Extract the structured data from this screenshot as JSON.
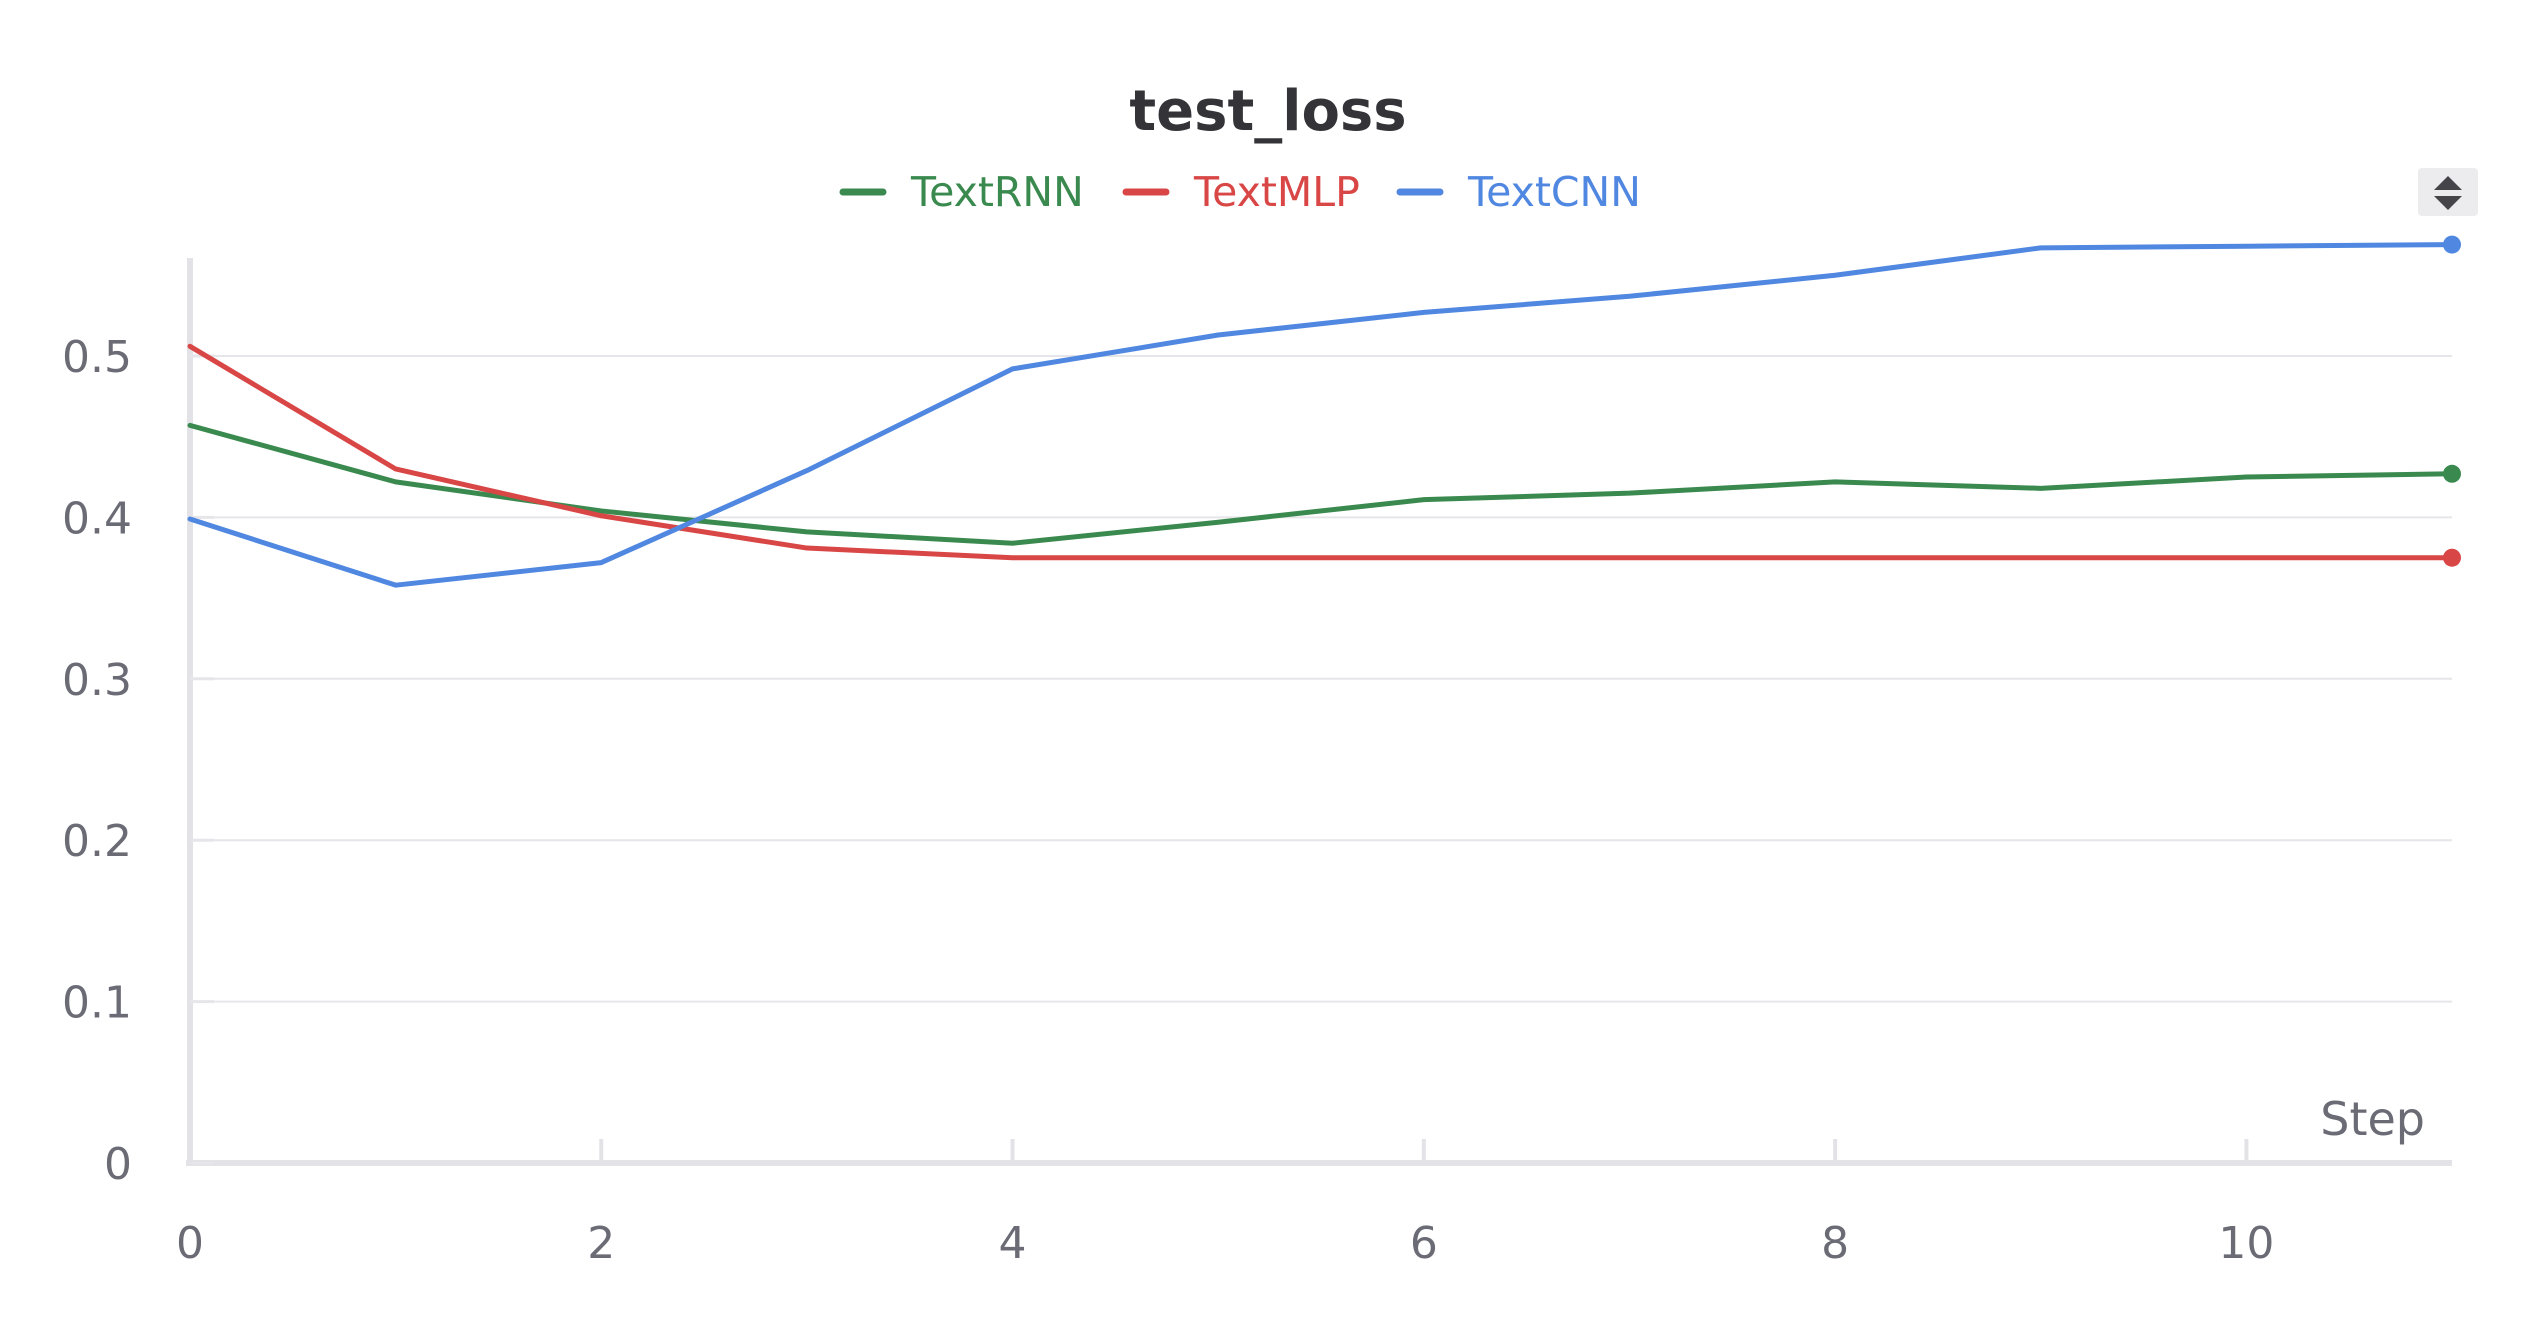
{
  "chart_data": {
    "type": "line",
    "title": "test_loss",
    "xlabel": "Step",
    "ylabel": "",
    "xlim": [
      0,
      11
    ],
    "ylim": [
      0,
      0.57
    ],
    "x_ticks": [
      "0",
      "2",
      "4",
      "6",
      "8",
      "10"
    ],
    "y_ticks": [
      "0",
      "0.1",
      "0.2",
      "0.3",
      "0.4",
      "0.5"
    ],
    "grid": true,
    "legend_position": "top-center",
    "x": [
      0,
      1,
      2,
      3,
      4,
      5,
      6,
      7,
      8,
      9,
      10,
      11
    ],
    "series": [
      {
        "name": "TextRNN",
        "color": "#3a8a4f",
        "values": [
          0.457,
          0.422,
          0.404,
          0.391,
          0.384,
          0.397,
          0.411,
          0.415,
          0.422,
          0.418,
          0.425,
          0.427
        ]
      },
      {
        "name": "TextMLP",
        "color": "#d94646",
        "values": [
          0.506,
          0.43,
          0.401,
          0.381,
          0.375,
          0.375,
          0.375,
          0.375,
          0.375,
          0.375,
          0.375,
          0.375
        ]
      },
      {
        "name": "TextCNN",
        "color": "#5087e0",
        "values": [
          0.399,
          0.358,
          0.372,
          0.429,
          0.492,
          0.513,
          0.527,
          0.537,
          0.55,
          0.567,
          0.568,
          0.569
        ]
      }
    ]
  },
  "controls": {
    "legend_toggle_icon": "up-down-chevron-icon"
  }
}
